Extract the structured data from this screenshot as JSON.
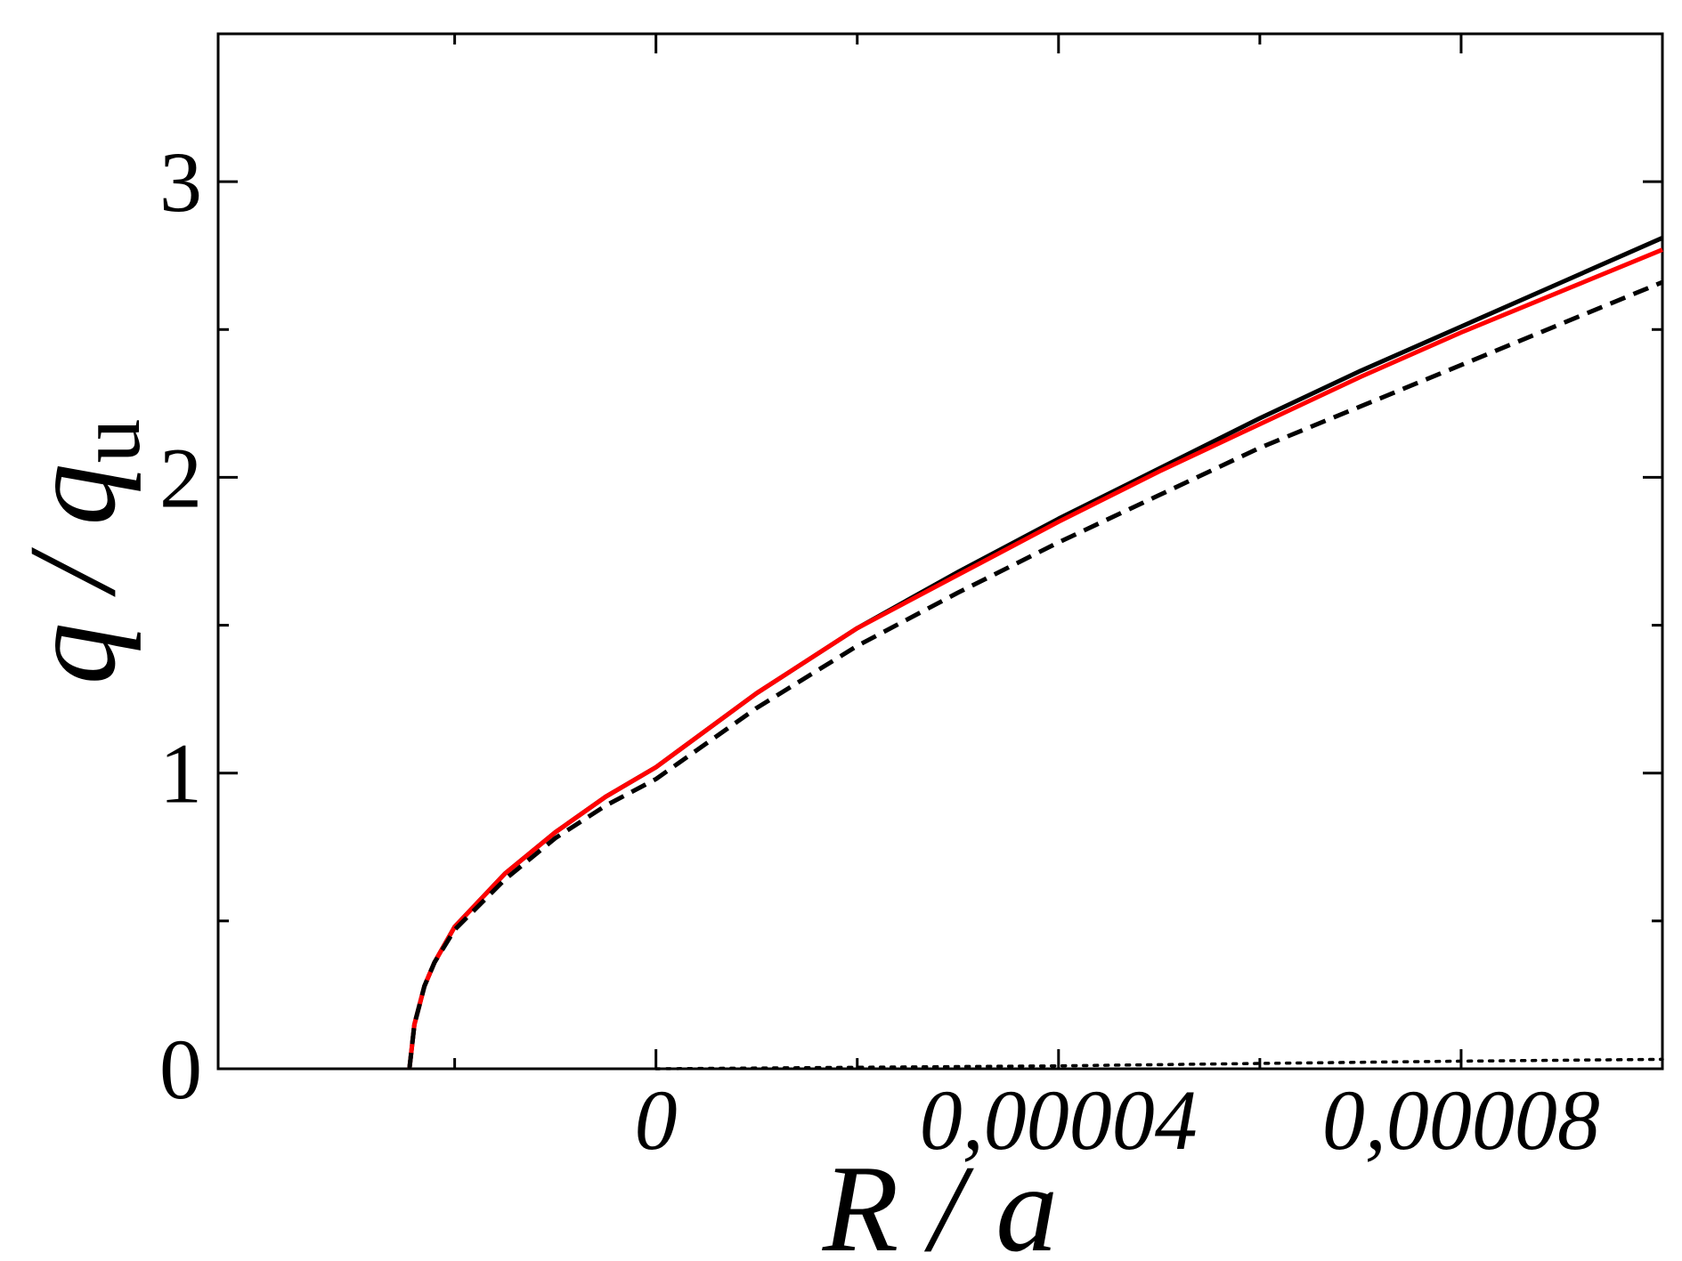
{
  "chart_data": {
    "type": "line",
    "xlabel": {
      "main": "R / a",
      "sub": ""
    },
    "ylabel": {
      "main": "q / q",
      "sub": "u"
    },
    "xlim": [
      -4.35e-05,
      0.0001
    ],
    "ylim": [
      0,
      3.5
    ],
    "x_ticks": [
      {
        "value": 0,
        "label": "0"
      },
      {
        "value": 4e-05,
        "label": "0,00004"
      },
      {
        "value": 8e-05,
        "label": "0,00008"
      }
    ],
    "x_minor_ticks": [
      -2e-05,
      2e-05,
      6e-05
    ],
    "y_ticks": [
      {
        "value": 0,
        "label": "0"
      },
      {
        "value": 1,
        "label": "1"
      },
      {
        "value": 2,
        "label": "2"
      },
      {
        "value": 3,
        "label": "3"
      }
    ],
    "y_minor_ticks": [
      0.5,
      1.5,
      2.5
    ],
    "grid": false,
    "legend": "none",
    "series": [
      {
        "style": "solid",
        "color": "#000000",
        "x": [
          -2.45e-05,
          -2.4e-05,
          -2.3e-05,
          -2.2e-05,
          -2e-05,
          -1.5e-05,
          -1e-05,
          -5e-06,
          0,
          1e-05,
          2e-05,
          3e-05,
          4e-05,
          5e-05,
          6e-05,
          7e-05,
          8e-05,
          9e-05,
          0.0001
        ],
        "y": [
          0,
          0.15,
          0.28,
          0.36,
          0.48,
          0.66,
          0.8,
          0.92,
          1.02,
          1.27,
          1.49,
          1.68,
          1.86,
          2.03,
          2.2,
          2.36,
          2.51,
          2.66,
          2.81
        ]
      },
      {
        "style": "solid",
        "color": "#ff0000",
        "x": [
          -2.45e-05,
          -2.4e-05,
          -2.3e-05,
          -2.2e-05,
          -2e-05,
          -1.5e-05,
          -1e-05,
          -5e-06,
          0,
          1e-05,
          2e-05,
          3e-05,
          4e-05,
          5e-05,
          6e-05,
          7e-05,
          8e-05,
          9e-05,
          0.0001
        ],
        "y": [
          0,
          0.15,
          0.28,
          0.36,
          0.48,
          0.66,
          0.8,
          0.92,
          1.02,
          1.27,
          1.49,
          1.67,
          1.85,
          2.02,
          2.18,
          2.34,
          2.49,
          2.63,
          2.77
        ]
      },
      {
        "style": "dashed",
        "color": "#000000",
        "x": [
          -2.45e-05,
          -2.4e-05,
          -2.3e-05,
          -2.2e-05,
          -2e-05,
          -1.5e-05,
          -1e-05,
          -5e-06,
          0,
          1e-05,
          2e-05,
          3e-05,
          4e-05,
          5e-05,
          6e-05,
          7e-05,
          8e-05,
          9e-05,
          0.0001
        ],
        "y": [
          0,
          0.15,
          0.28,
          0.36,
          0.47,
          0.64,
          0.78,
          0.89,
          0.98,
          1.22,
          1.43,
          1.61,
          1.78,
          1.94,
          2.1,
          2.24,
          2.38,
          2.52,
          2.66
        ]
      },
      {
        "style": "dotted",
        "color": "#000000",
        "x": [
          0,
          2e-05,
          4e-05,
          6e-05,
          8e-05,
          0.0001
        ],
        "y": [
          0,
          0.005,
          0.01,
          0.018,
          0.026,
          0.032
        ]
      }
    ]
  }
}
